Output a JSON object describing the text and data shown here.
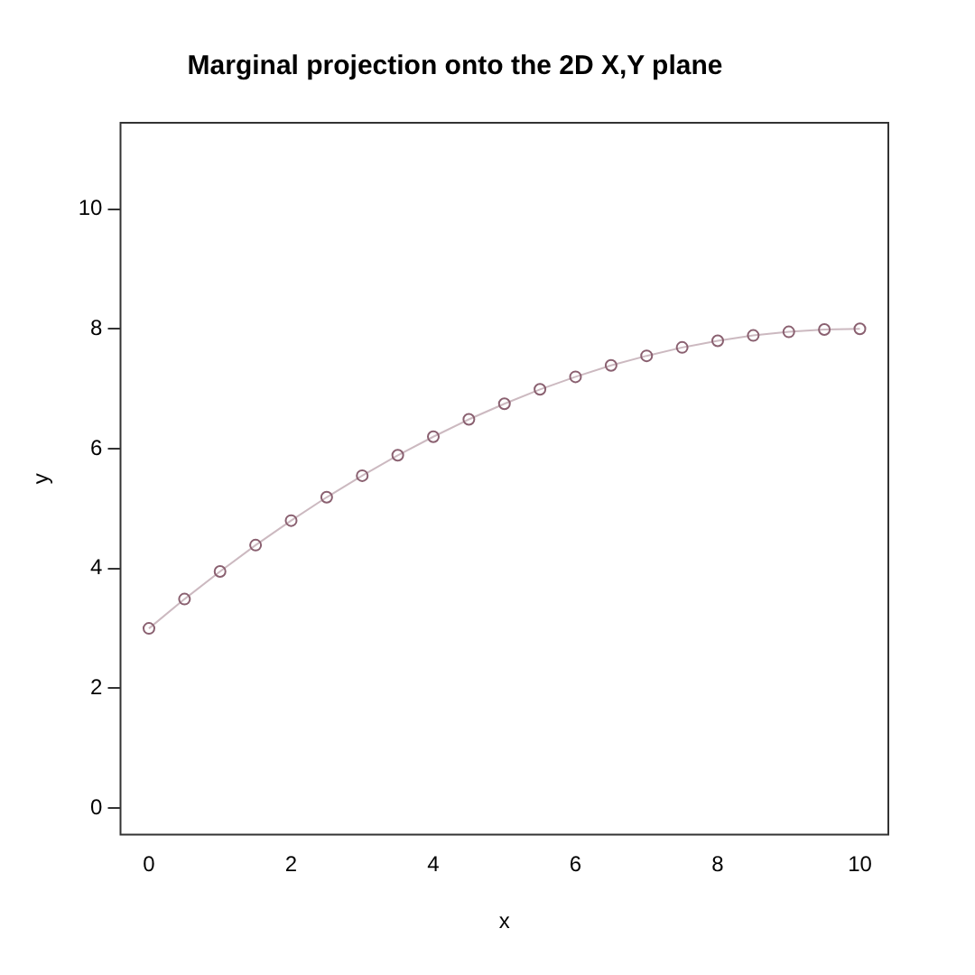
{
  "chart_data": {
    "type": "line",
    "title": "Marginal projection onto the 2D X,Y plane",
    "xlabel": "x",
    "ylabel": "y",
    "x": [
      0,
      0.5,
      1,
      1.5,
      2,
      2.5,
      3,
      3.5,
      4,
      4.5,
      5,
      5.5,
      6,
      6.5,
      7,
      7.5,
      8,
      8.5,
      9,
      9.5,
      10
    ],
    "series": [
      {
        "color": "#8a6070",
        "values": [
          3,
          3.49,
          3.95,
          4.39,
          4.8,
          5.19,
          5.55,
          5.89,
          6.2,
          6.49,
          6.75,
          6.99,
          7.2,
          7.39,
          7.55,
          7.69,
          7.8,
          7.89,
          7.95,
          7.99,
          8
        ]
      }
    ],
    "xlim": [
      -0.4,
      10.4
    ],
    "ylim": [
      -0.44,
      11.44
    ],
    "xticks": [
      0,
      2,
      4,
      6,
      8,
      10
    ],
    "yticks": [
      0,
      2,
      4,
      6,
      8,
      10
    ],
    "grid": false,
    "legend": false,
    "marker": "circle",
    "line_style": "solid"
  }
}
